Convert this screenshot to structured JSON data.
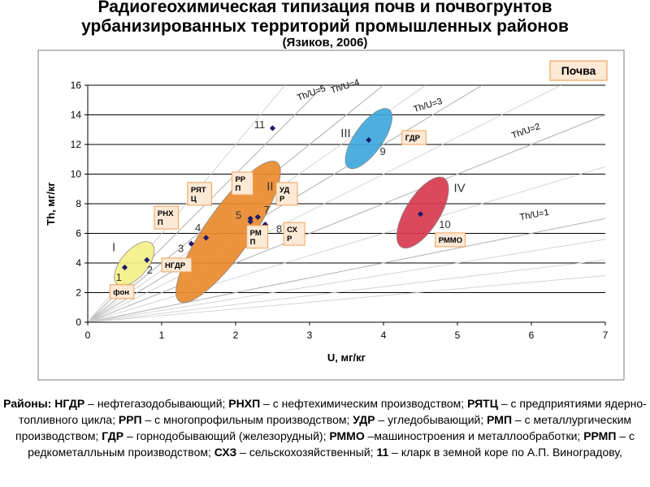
{
  "title": {
    "line1": "Радиогеохимическая типизация почв и почвогрунтов",
    "line2": "урбанизированных территорий промышленных районов",
    "line3": "(Язиков, 2006)"
  },
  "chart_data": {
    "type": "scatter",
    "title": "",
    "xlabel": "U, мг/кг",
    "ylabel": "Th, мг/кг",
    "xlim": [
      0,
      7
    ],
    "ylim": [
      0,
      16
    ],
    "xticks": [
      "0",
      "1",
      "2",
      "3",
      "4",
      "5",
      "6",
      "7"
    ],
    "yticks": [
      "0",
      "2",
      "4",
      "6",
      "8",
      "10",
      "12",
      "14",
      "16"
    ],
    "grid": "horizontal",
    "legend_box": "Почва",
    "ratio_lines": [
      {
        "label": "Th/U=5",
        "ratio": 5
      },
      {
        "label": "Th/U=4",
        "ratio": 4
      },
      {
        "label": "Th/U=3",
        "ratio": 3
      },
      {
        "label": "Th/U=2",
        "ratio": 2
      },
      {
        "label": "Th/U=1",
        "ratio": 1
      }
    ],
    "points": [
      {
        "n": "1",
        "x": 0.5,
        "y": 3.7
      },
      {
        "n": "2",
        "x": 0.8,
        "y": 4.2
      },
      {
        "n": "3",
        "x": 1.4,
        "y": 5.3
      },
      {
        "n": "4",
        "x": 1.6,
        "y": 5.7
      },
      {
        "n": "5",
        "x": 2.2,
        "y": 7.0
      },
      {
        "n": "6",
        "x": 2.2,
        "y": 6.8
      },
      {
        "n": "7",
        "x": 2.3,
        "y": 7.1
      },
      {
        "n": "8",
        "x": 2.4,
        "y": 6.6
      },
      {
        "n": "9",
        "x": 3.8,
        "y": 12.3
      },
      {
        "n": "10",
        "x": 4.5,
        "y": 7.3
      },
      {
        "n": "11",
        "x": 2.5,
        "y": 13.1
      }
    ],
    "groups": [
      {
        "label": "I",
        "cx": 0.63,
        "cy": 3.95,
        "rx": 0.36,
        "ry": 0.9,
        "angle": 50,
        "color": "#f5f08a"
      },
      {
        "label": "II",
        "cx": 1.9,
        "cy": 6.1,
        "rx": 1.15,
        "ry": 1.55,
        "angle": 55,
        "color": "#e98a2c"
      },
      {
        "label": "III",
        "cx": 3.8,
        "cy": 12.4,
        "rx": 0.48,
        "ry": 0.95,
        "angle": 55,
        "color": "#3ea8dd"
      },
      {
        "label": "IV",
        "cx": 4.53,
        "cy": 7.4,
        "rx": 0.55,
        "ry": 1.15,
        "angle": 58,
        "color": "#d93a4e"
      }
    ],
    "district_labels": [
      {
        "text": "фон",
        "x": 0.3,
        "y": 1.6
      },
      {
        "text": "НГДР",
        "x": 1.0,
        "y": 3.4
      },
      {
        "text": "РНХ П",
        "x": 0.9,
        "y": 6.3
      },
      {
        "text": "РЯТ Ц",
        "x": 1.35,
        "y": 7.9
      },
      {
        "text": "РР П",
        "x": 1.95,
        "y": 8.6
      },
      {
        "text": "УД Р",
        "x": 2.55,
        "y": 7.9
      },
      {
        "text": "РМ П",
        "x": 2.15,
        "y": 5.0
      },
      {
        "text": "СХ Р",
        "x": 2.65,
        "y": 5.2
      },
      {
        "text": "ГДР",
        "x": 4.25,
        "y": 12.0
      },
      {
        "text": "РММО",
        "x": 4.7,
        "y": 5.1
      }
    ]
  },
  "caption": {
    "lead": "Районы:",
    "items": [
      {
        "abbr": "НГДР",
        "desc": " – нефтегазодобывающий; "
      },
      {
        "abbr": "РНХП",
        "desc": " – с нефтехимическим производством; "
      },
      {
        "abbr": "РЯТЦ",
        "desc": " – с предприятиями ядерно-топливного цикла; "
      },
      {
        "abbr": "РРП",
        "desc": " – с многопрофильным производством; "
      },
      {
        "abbr": "УДР",
        "desc": " – угледобывающий; "
      },
      {
        "abbr": "РМП",
        "desc": " – с металлургическим производством; "
      },
      {
        "abbr": "ГДР",
        "desc": " – горнодобывающий (железорудный); "
      },
      {
        "abbr": "РММО",
        "desc": " –машиностроения и металлообработки; "
      },
      {
        "abbr": "РРМП",
        "desc": " – с редкометалльным производством; "
      },
      {
        "abbr": "СХЗ",
        "desc": " – сельскохозяйственный; "
      },
      {
        "abbr": "11",
        "desc": " – кларк в земной коре по А.П. Виноградову,"
      }
    ]
  }
}
